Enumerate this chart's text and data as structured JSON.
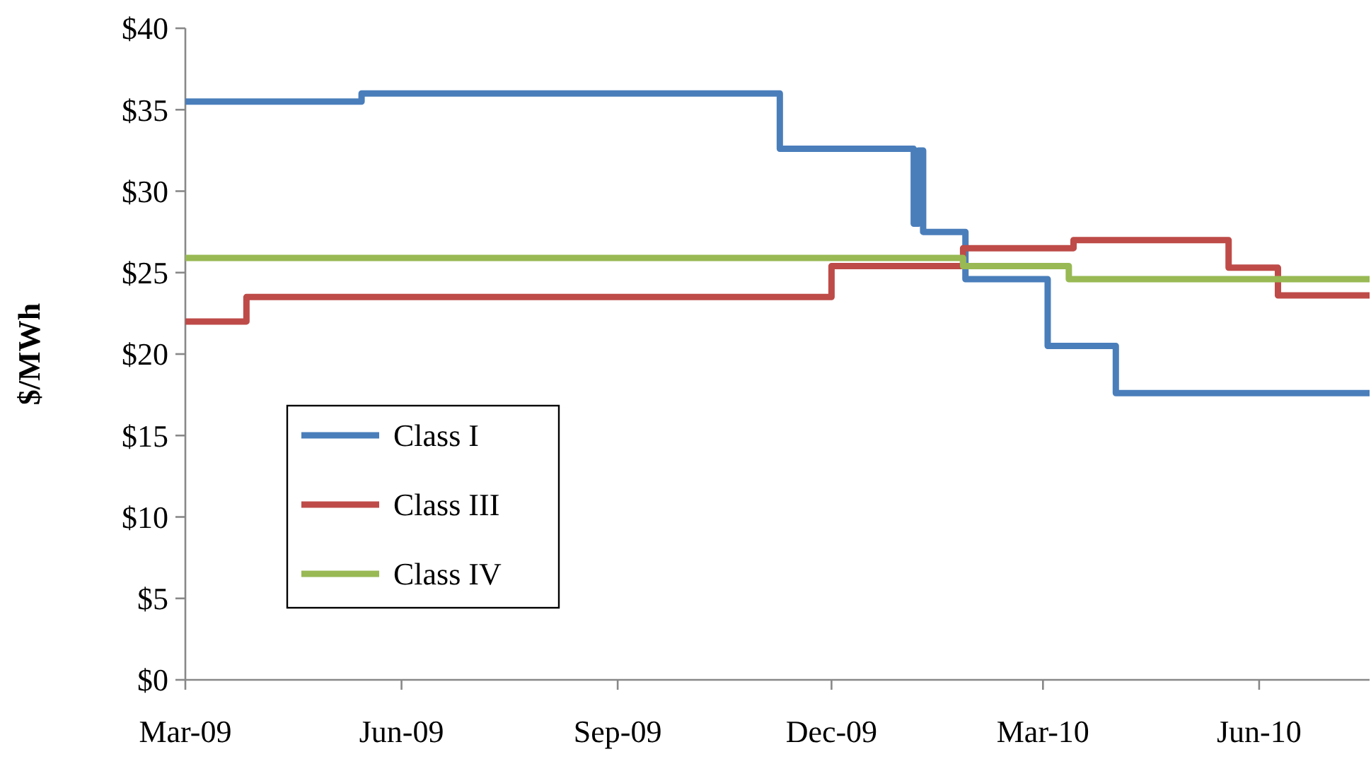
{
  "chart_data": {
    "type": "step",
    "ylabel": "$/MWh",
    "xlim": [
      "2009-03-01",
      "2010-07-18"
    ],
    "xticks": [
      {
        "value": "2009-03-01",
        "label": "Mar-09"
      },
      {
        "value": "2009-06-01",
        "label": "Jun-09"
      },
      {
        "value": "2009-09-01",
        "label": "Sep-09"
      },
      {
        "value": "2009-12-01",
        "label": "Dec-09"
      },
      {
        "value": "2010-03-01",
        "label": "Mar-10"
      },
      {
        "value": "2010-06-01",
        "label": "Jun-10"
      }
    ],
    "ylim": [
      0,
      40
    ],
    "yticks": [
      {
        "value": 0,
        "label": "$0"
      },
      {
        "value": 5,
        "label": "$5"
      },
      {
        "value": 10,
        "label": "$10"
      },
      {
        "value": 15,
        "label": "$15"
      },
      {
        "value": 20,
        "label": "$20"
      },
      {
        "value": 25,
        "label": "$25"
      },
      {
        "value": 30,
        "label": "$30"
      },
      {
        "value": 35,
        "label": "$35"
      },
      {
        "value": 40,
        "label": "$40"
      }
    ],
    "grid": false,
    "legend": "bottom left",
    "line_style": "solid",
    "marker": "none",
    "series": [
      {
        "name": "Class I",
        "color": "#4a7ebb",
        "x": [
          "2009-03-01",
          "2009-05-15",
          "2009-11-09",
          "2010-01-05",
          "2010-01-07",
          "2010-01-09",
          "2010-01-27",
          "2010-03-03",
          "2010-04-01",
          "2010-07-18"
        ],
        "values": [
          35.5,
          36,
          32.6,
          28,
          32.5,
          27.5,
          24.6,
          20.5,
          17.6,
          17.6
        ]
      },
      {
        "name": "Class III",
        "color": "#be4b48",
        "x": [
          "2009-03-01",
          "2009-03-27",
          "2009-12-01",
          "2010-01-26",
          "2010-03-14",
          "2010-05-19",
          "2010-06-09",
          "2010-07-18"
        ],
        "values": [
          22,
          23.5,
          25.4,
          26.5,
          27,
          25.3,
          23.6,
          23.6
        ]
      },
      {
        "name": "Class IV",
        "color": "#98b954",
        "x": [
          "2009-03-01",
          "2010-01-26",
          "2010-03-12",
          "2010-07-18"
        ],
        "values": [
          25.9,
          25.4,
          24.6,
          24.6
        ]
      }
    ]
  }
}
